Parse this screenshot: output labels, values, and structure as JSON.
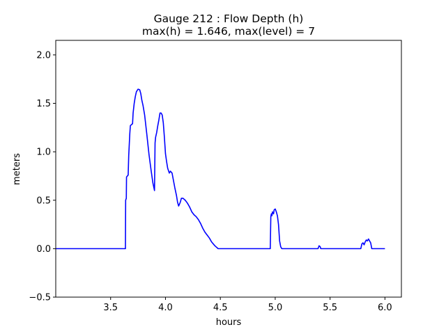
{
  "chart_data": {
    "type": "line",
    "title": "Gauge 212 : Flow Depth (h)",
    "subtitle": "max(h) =   1.646,    max(level) = 7",
    "xlabel": "hours",
    "ylabel": "meters",
    "xlim": [
      3.0,
      6.15
    ],
    "ylim": [
      -0.5,
      2.15
    ],
    "xticks": [
      3.5,
      4.0,
      4.5,
      5.0,
      5.5,
      6.0
    ],
    "xtick_labels": [
      "3.5",
      "4.0",
      "4.5",
      "5.0",
      "5.5",
      "6.0"
    ],
    "yticks": [
      -0.5,
      0.0,
      0.5,
      1.0,
      1.5,
      2.0
    ],
    "ytick_labels": [
      "−0.5",
      "0.0",
      "0.5",
      "1.0",
      "1.5",
      "2.0"
    ],
    "grid": false,
    "series": [
      {
        "color": "#0000ff",
        "points": [
          [
            3.0,
            0.0
          ],
          [
            3.63,
            0.0
          ],
          [
            3.635,
            0.0
          ],
          [
            3.637,
            0.5
          ],
          [
            3.643,
            0.52
          ],
          [
            3.645,
            0.74
          ],
          [
            3.66,
            0.76
          ],
          [
            3.665,
            0.96
          ],
          [
            3.675,
            1.19
          ],
          [
            3.68,
            1.27
          ],
          [
            3.69,
            1.28
          ],
          [
            3.7,
            1.29
          ],
          [
            3.705,
            1.4
          ],
          [
            3.715,
            1.5
          ],
          [
            3.725,
            1.57
          ],
          [
            3.735,
            1.62
          ],
          [
            3.75,
            1.646
          ],
          [
            3.765,
            1.64
          ],
          [
            3.775,
            1.6
          ],
          [
            3.785,
            1.53
          ],
          [
            3.795,
            1.48
          ],
          [
            3.81,
            1.38
          ],
          [
            3.83,
            1.18
          ],
          [
            3.85,
            0.97
          ],
          [
            3.87,
            0.8
          ],
          [
            3.885,
            0.68
          ],
          [
            3.9,
            0.6
          ],
          [
            3.905,
            1.09
          ],
          [
            3.91,
            1.15
          ],
          [
            3.92,
            1.2
          ],
          [
            3.93,
            1.27
          ],
          [
            3.94,
            1.33
          ],
          [
            3.95,
            1.4
          ],
          [
            3.96,
            1.4
          ],
          [
            3.97,
            1.38
          ],
          [
            3.98,
            1.3
          ],
          [
            3.99,
            1.15
          ],
          [
            4.0,
            0.98
          ],
          [
            4.01,
            0.9
          ],
          [
            4.02,
            0.83
          ],
          [
            4.035,
            0.78
          ],
          [
            4.045,
            0.8
          ],
          [
            4.06,
            0.78
          ],
          [
            4.07,
            0.72
          ],
          [
            4.085,
            0.63
          ],
          [
            4.1,
            0.55
          ],
          [
            4.11,
            0.48
          ],
          [
            4.12,
            0.44
          ],
          [
            4.135,
            0.48
          ],
          [
            4.145,
            0.52
          ],
          [
            4.16,
            0.52
          ],
          [
            4.18,
            0.5
          ],
          [
            4.2,
            0.47
          ],
          [
            4.22,
            0.43
          ],
          [
            4.24,
            0.38
          ],
          [
            4.26,
            0.35
          ],
          [
            4.28,
            0.33
          ],
          [
            4.3,
            0.3
          ],
          [
            4.32,
            0.26
          ],
          [
            4.34,
            0.21
          ],
          [
            4.36,
            0.17
          ],
          [
            4.38,
            0.14
          ],
          [
            4.4,
            0.11
          ],
          [
            4.42,
            0.07
          ],
          [
            4.45,
            0.03
          ],
          [
            4.48,
            0.0
          ],
          [
            4.95,
            0.0
          ],
          [
            4.955,
            0.0
          ],
          [
            4.96,
            0.33
          ],
          [
            4.965,
            0.36
          ],
          [
            4.97,
            0.34
          ],
          [
            4.975,
            0.38
          ],
          [
            4.985,
            0.36
          ],
          [
            4.99,
            0.4
          ],
          [
            5.0,
            0.41
          ],
          [
            5.01,
            0.38
          ],
          [
            5.02,
            0.34
          ],
          [
            5.03,
            0.25
          ],
          [
            5.04,
            0.08
          ],
          [
            5.05,
            0.02
          ],
          [
            5.06,
            0.0
          ],
          [
            5.39,
            0.0
          ],
          [
            5.4,
            0.03
          ],
          [
            5.41,
            0.02
          ],
          [
            5.415,
            0.0
          ],
          [
            5.78,
            0.0
          ],
          [
            5.79,
            0.05
          ],
          [
            5.8,
            0.06
          ],
          [
            5.81,
            0.04
          ],
          [
            5.82,
            0.07
          ],
          [
            5.83,
            0.09
          ],
          [
            5.84,
            0.08
          ],
          [
            5.85,
            0.1
          ],
          [
            5.86,
            0.08
          ],
          [
            5.87,
            0.06
          ],
          [
            5.88,
            0.0
          ],
          [
            6.0,
            0.0
          ]
        ]
      }
    ]
  }
}
